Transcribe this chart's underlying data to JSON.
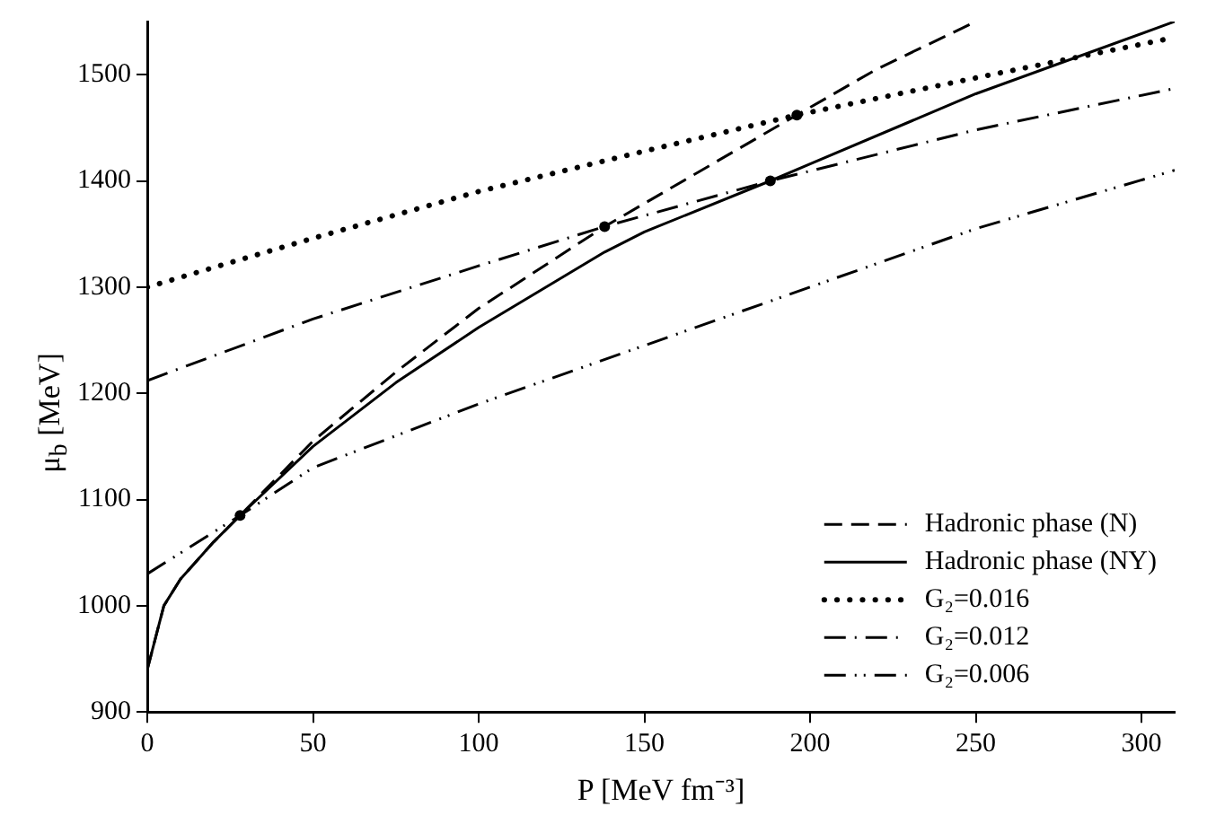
{
  "chart_data": {
    "type": "line",
    "xlabel": "P [MeV fm⁻³]",
    "ylabel": "μ$_{b}$ [MeV]",
    "xlim": [
      0,
      310
    ],
    "xticks": [
      0,
      50,
      100,
      150,
      200,
      250,
      300
    ],
    "ylim": [
      900,
      1550
    ],
    "yticks": [
      900,
      1000,
      1100,
      1200,
      1300,
      1400,
      1500
    ],
    "legend": "bottom right",
    "grid": false,
    "marker": "none",
    "series": [
      {
        "name": "Hadronic phase (N)",
        "color": "#000000",
        "line_style": "dashed",
        "x": [
          0,
          5,
          10,
          20,
          28,
          50,
          75,
          100,
          138,
          170,
          196,
          220,
          250
        ],
        "values": [
          940,
          1000,
          1025,
          1060,
          1085,
          1155,
          1220,
          1280,
          1357,
          1415,
          1462,
          1505,
          1550
        ]
      },
      {
        "name": "Hadronic phase (NY)",
        "color": "#000000",
        "line_style": "solid",
        "x": [
          0,
          5,
          10,
          20,
          28,
          50,
          75,
          100,
          138,
          150,
          188,
          200,
          250,
          310
        ],
        "values": [
          940,
          1000,
          1025,
          1060,
          1085,
          1150,
          1210,
          1262,
          1333,
          1352,
          1400,
          1416,
          1482,
          1550
        ]
      },
      {
        "name": "G₂=0.016",
        "color": "#000000",
        "line_style": "dotted",
        "x": [
          0,
          50,
          100,
          150,
          196,
          250,
          310
        ],
        "values": [
          1300,
          1346,
          1390,
          1428,
          1462,
          1497,
          1535
        ]
      },
      {
        "name": "G₂=0.012",
        "color": "#000000",
        "line_style": "dashdot",
        "x": [
          0,
          50,
          100,
          138,
          188,
          250,
          310
        ],
        "values": [
          1212,
          1270,
          1320,
          1357,
          1400,
          1448,
          1487
        ]
      },
      {
        "name": "G₂=0.006",
        "color": "#000000",
        "line_style": "dashdotdot",
        "x": [
          0,
          28,
          50,
          100,
          150,
          200,
          250,
          310
        ],
        "values": [
          1030,
          1085,
          1130,
          1190,
          1245,
          1300,
          1355,
          1410
        ]
      },
      {
        "type": "scatter",
        "color": "#000000",
        "marker": "circle",
        "x": [
          28,
          138,
          188,
          196
        ],
        "values": [
          1085,
          1357,
          1400,
          1462
        ]
      }
    ]
  }
}
